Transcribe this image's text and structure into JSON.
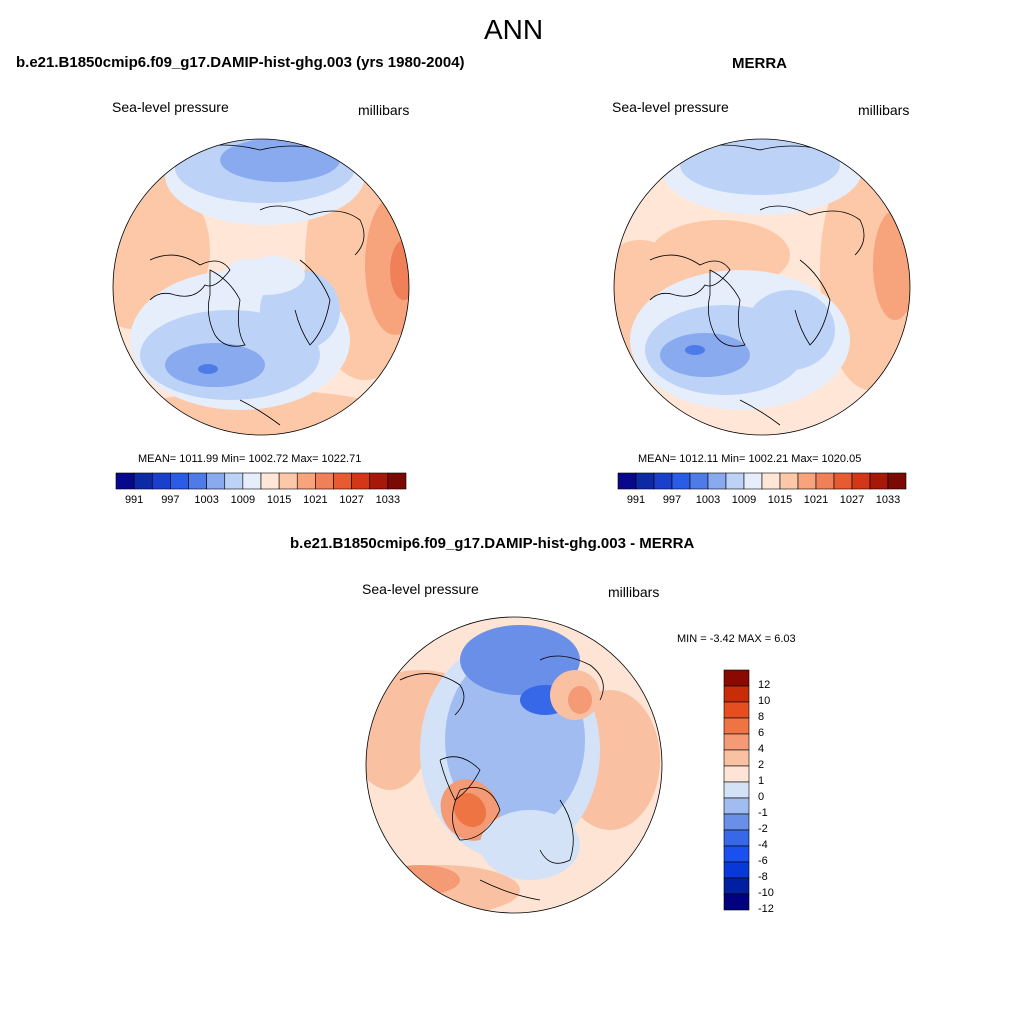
{
  "page": {
    "title": "ANN"
  },
  "colors": {
    "full_scale": [
      "#08088c",
      "#0d2aa6",
      "#1a3fcc",
      "#2b5ce8",
      "#4d7ce8",
      "#8aaaf0",
      "#bcd2f7",
      "#e6eefc",
      "#ffe6d6",
      "#fcc8a8",
      "#f7a47c",
      "#f0805a",
      "#e85a30",
      "#d4361a",
      "#a81808",
      "#7a0a04"
    ],
    "diff_scale": [
      "#000080",
      "#0020a0",
      "#0838d8",
      "#1a50f0",
      "#3668e8",
      "#6a8fe8",
      "#a0bcf0",
      "#d4e2f8",
      "#fde4d4",
      "#f9c0a2",
      "#f49a74",
      "#ee7444",
      "#e44e20",
      "#c82c08",
      "#8a0a02"
    ]
  },
  "panels": {
    "model": {
      "title": "b.e21.B1850cmip6.f09_g17.DAMIP-hist-ghg.003 (yrs 1980-2004)",
      "left_label": "Sea-level pressure",
      "right_label": "millibars",
      "stats": "MEAN= 1011.99  Min= 1002.72  Max= 1022.71",
      "colorbar_ticks": [
        "991",
        "997",
        "1003",
        "1009",
        "1015",
        "1021",
        "1027",
        "1033"
      ]
    },
    "obs": {
      "title": "MERRA",
      "left_label": "Sea-level pressure",
      "right_label": "millibars",
      "stats": "MEAN= 1012.11  Min= 1002.21  Max= 1020.05",
      "colorbar_ticks": [
        "991",
        "997",
        "1003",
        "1009",
        "1015",
        "1021",
        "1027",
        "1033"
      ]
    },
    "diff": {
      "title": "b.e21.B1850cmip6.f09_g17.DAMIP-hist-ghg.003 - MERRA",
      "left_label": "Sea-level pressure",
      "right_label": "millibars",
      "stats": "MIN =  -3.42 MAX =   6.03",
      "colorbar_ticks": [
        "12",
        "10",
        "8",
        "6",
        "4",
        "2",
        "1",
        "0",
        "-1",
        "-2",
        "-4",
        "-6",
        "-8",
        "-10",
        "-12"
      ]
    }
  }
}
